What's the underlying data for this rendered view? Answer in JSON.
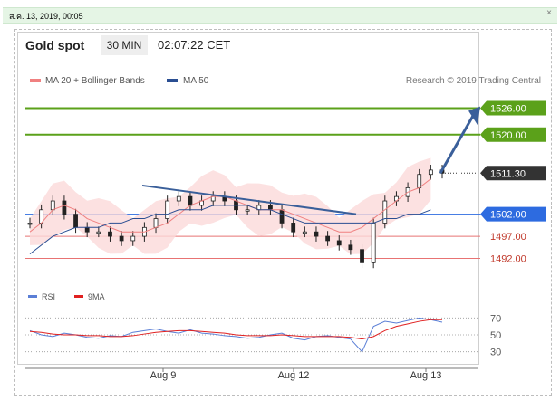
{
  "topbar": {
    "date": "ส.ค. 13, 2019, 00:05",
    "close": "×"
  },
  "header": {
    "title": "Gold spot",
    "timeframe": "30 MIN",
    "time": "02:07:22 CET"
  },
  "legend": {
    "ma20": "MA 20 + Bollinger Bands",
    "ma50": "MA 50",
    "credit": "Research © 2019 Trading Central"
  },
  "rsi_legend": {
    "rsi": "RSI",
    "ma9": "9MA"
  },
  "colors": {
    "resistance": "#5ba11a",
    "support_line": "#2d6be0",
    "level_line": "#e87373",
    "trend": "#3a5f9a",
    "price_tag": "#333333",
    "band": "#fbd9d9",
    "ma50": "#2a4e92",
    "ma20": "#f08080",
    "rsi": "#5b7fd6",
    "rsi_ma": "#e02020"
  },
  "chart_data": [
    {
      "type": "line",
      "title": "Gold spot",
      "ylim": [
        1488,
        1530
      ],
      "x_ticks": [
        "Aug 9",
        "Aug 12",
        "Aug 13"
      ],
      "levels": [
        {
          "label": "1526.00",
          "value": 1526,
          "kind": "resistance"
        },
        {
          "label": "1520.00",
          "value": 1520,
          "kind": "resistance"
        },
        {
          "label": "1511.30",
          "value": 1511.3,
          "kind": "last-price"
        },
        {
          "label": "1502.00",
          "value": 1502,
          "kind": "pivot"
        },
        {
          "label": "1497.00",
          "value": 1497,
          "kind": "support"
        },
        {
          "label": "1492.00",
          "value": 1492,
          "kind": "support"
        }
      ],
      "series": [
        {
          "name": "MA 20 + Bollinger Bands",
          "values": [
            1498,
            1500,
            1503,
            1504,
            1503,
            1501,
            1500,
            1499,
            1498,
            1498,
            1498,
            1499,
            1500,
            1502,
            1504,
            1505,
            1506,
            1506,
            1505,
            1504,
            1503,
            1503,
            1503,
            1502,
            1501,
            1500,
            1499,
            1498,
            1498,
            1499,
            1501,
            1503,
            1505,
            1507,
            1508,
            1510
          ]
        },
        {
          "name": "MA 50",
          "values": [
            1493,
            1495,
            1497,
            1498,
            1499,
            1499,
            1499,
            1500,
            1500,
            1501,
            1501,
            1502,
            1502,
            1503,
            1503,
            1503,
            1504,
            1504,
            1504,
            1504,
            1503,
            1503,
            1502,
            1501,
            1500,
            1500,
            1500,
            1500,
            1500,
            1500,
            1500,
            1501,
            1501,
            1502,
            1502,
            1503
          ]
        },
        {
          "name": "Price",
          "values": [
            1500,
            1503,
            1505,
            1502,
            1499,
            1498,
            1498,
            1497,
            1496,
            1497,
            1499,
            1501,
            1505,
            1506,
            1504,
            1505,
            1506,
            1505,
            1503,
            1503,
            1504,
            1503,
            1500,
            1498,
            1498,
            1497,
            1496,
            1495,
            1494,
            1491,
            1500,
            1505,
            1506,
            1508,
            1511,
            1512,
            1511.3
          ]
        }
      ]
    },
    {
      "type": "line",
      "title": "",
      "ylim": [
        20,
        80
      ],
      "y_ticks": [
        "70",
        "50",
        "30"
      ],
      "series": [
        {
          "name": "RSI",
          "values": [
            55,
            50,
            48,
            52,
            50,
            47,
            46,
            49,
            48,
            53,
            55,
            57,
            54,
            52,
            56,
            52,
            51,
            49,
            48,
            46,
            47,
            50,
            52,
            46,
            44,
            48,
            49,
            47,
            45,
            30,
            60,
            66,
            64,
            67,
            70,
            68,
            65
          ]
        },
        {
          "name": "9MA",
          "values": [
            54,
            53,
            51,
            50,
            50,
            49,
            49,
            48,
            48,
            49,
            51,
            53,
            54,
            55,
            55,
            54,
            53,
            52,
            50,
            49,
            49,
            49,
            50,
            49,
            48,
            48,
            48,
            48,
            47,
            45,
            48,
            55,
            60,
            63,
            66,
            68,
            68
          ]
        }
      ]
    }
  ]
}
